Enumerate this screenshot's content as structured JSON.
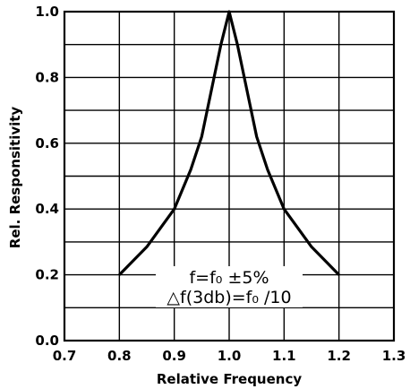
{
  "chart_data": {
    "type": "line",
    "xlabel": "Relative Frequency",
    "ylabel": "Rel. Responsitivity",
    "xlim": [
      0.7,
      1.3
    ],
    "ylim": [
      0.0,
      1.0
    ],
    "grid": true,
    "x_ticks": [
      "0.7",
      "0.8",
      "0.9",
      "1.0",
      "1.1",
      "1.2",
      "1.3"
    ],
    "y_ticks": [
      "0.0",
      "0.2",
      "0.4",
      "0.6",
      "0.8",
      "1.0"
    ],
    "series": [
      {
        "x": [
          0.8,
          0.85,
          0.9,
          0.93,
          0.95,
          0.97,
          0.985,
          1.0,
          1.015,
          1.03,
          1.05,
          1.07,
          1.1,
          1.15,
          1.2
        ],
        "y": [
          0.2,
          0.285,
          0.4,
          0.52,
          0.62,
          0.78,
          0.9,
          1.0,
          0.9,
          0.78,
          0.62,
          0.52,
          0.4,
          0.285,
          0.2
        ]
      }
    ],
    "annotations": [
      "f=f₀ ±5%",
      "△f(3db)=f₀ /10"
    ]
  }
}
